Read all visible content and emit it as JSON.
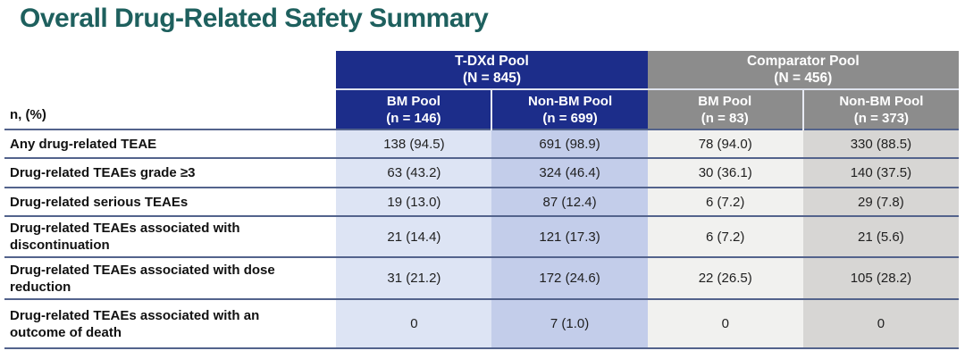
{
  "title": "Overall Drug-Related Safety Summary",
  "table": {
    "corner_label": "n, (%)",
    "col_groups": [
      {
        "label": "T-DXd Pool",
        "n": "(N = 845)"
      },
      {
        "label": "Comparator Pool",
        "n": "(N = 456)"
      }
    ],
    "sub_columns": [
      {
        "label": "BM Pool",
        "n": "(n = 146)"
      },
      {
        "label": "Non-BM Pool",
        "n": "(n = 699)"
      },
      {
        "label": "BM Pool",
        "n": "(n = 83)"
      },
      {
        "label": "Non-BM Pool",
        "n": "(n = 373)"
      }
    ],
    "rows": [
      {
        "label": "Any drug-related TEAE",
        "values": [
          "138 (94.5)",
          "691 (98.9)",
          "78 (94.0)",
          "330 (88.5)"
        ]
      },
      {
        "label": "Drug-related TEAEs grade ≥3",
        "values": [
          "63 (43.2)",
          "324 (46.4)",
          "30 (36.1)",
          "140 (37.5)"
        ]
      },
      {
        "label": "Drug-related serious TEAEs",
        "values": [
          "19 (13.0)",
          "87 (12.4)",
          "6 (7.2)",
          "29 (7.8)"
        ]
      },
      {
        "label": "Drug-related TEAEs associated with discontinuation",
        "values": [
          "21 (14.4)",
          "121 (17.3)",
          "6 (7.2)",
          "21 (5.6)"
        ]
      },
      {
        "label": "Drug-related TEAEs associated with dose reduction",
        "values": [
          "31 (21.2)",
          "172 (24.6)",
          "22 (26.5)",
          "105 (28.2)"
        ]
      },
      {
        "label": "Drug-related TEAEs associated with an outcome of death",
        "values": [
          "0",
          "7 (1.0)",
          "0",
          "0"
        ]
      }
    ]
  },
  "colors": {
    "title_text": "#1e605e",
    "tdxd_header_bg": "#1c2d8a",
    "comparator_header_bg": "#8c8c8c",
    "tdxd_bm_cell_bg": "#dde4f4",
    "tdxd_nonbm_cell_bg": "#c3cdea",
    "comparator_bm_cell_bg": "#f1f1ef",
    "comparator_nonbm_cell_bg": "#d7d6d4",
    "row_divider": "#53638c"
  }
}
